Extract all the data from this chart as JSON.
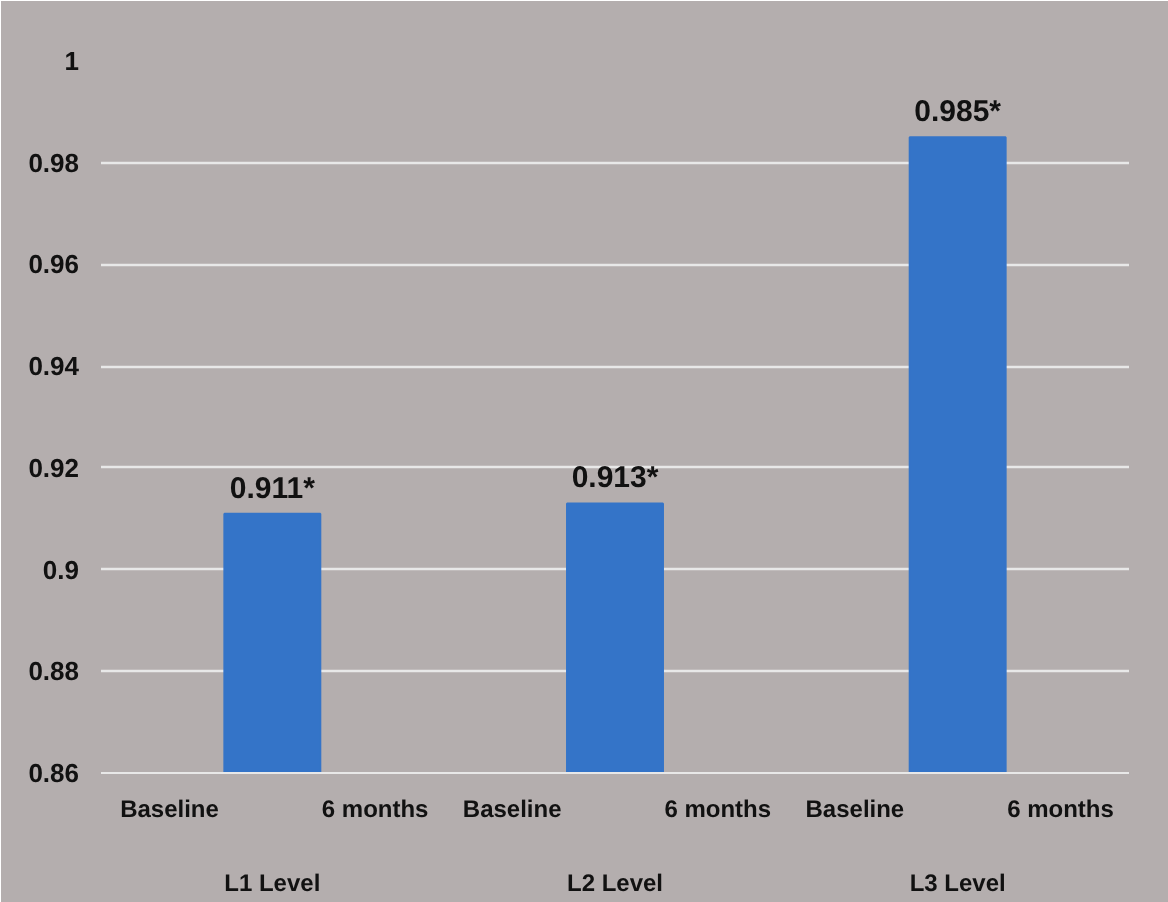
{
  "chart_data": {
    "type": "bar",
    "categories": [
      "L1 Level",
      "L2 Level",
      "L3 Level"
    ],
    "values": [
      0.911,
      0.913,
      0.985
    ],
    "value_labels": [
      "0.911*",
      "0.913*",
      "0.985*"
    ],
    "color": "#3474c8",
    "ylim": [
      0.86,
      1.0
    ],
    "yticks": [
      0.86,
      0.88,
      0.9,
      0.92,
      0.94,
      0.96,
      0.98,
      1
    ],
    "grid": "y",
    "annotations": [
      "Baseline",
      "6 months",
      "Baseline",
      "6 months",
      "Baseline",
      "6 months"
    ]
  }
}
